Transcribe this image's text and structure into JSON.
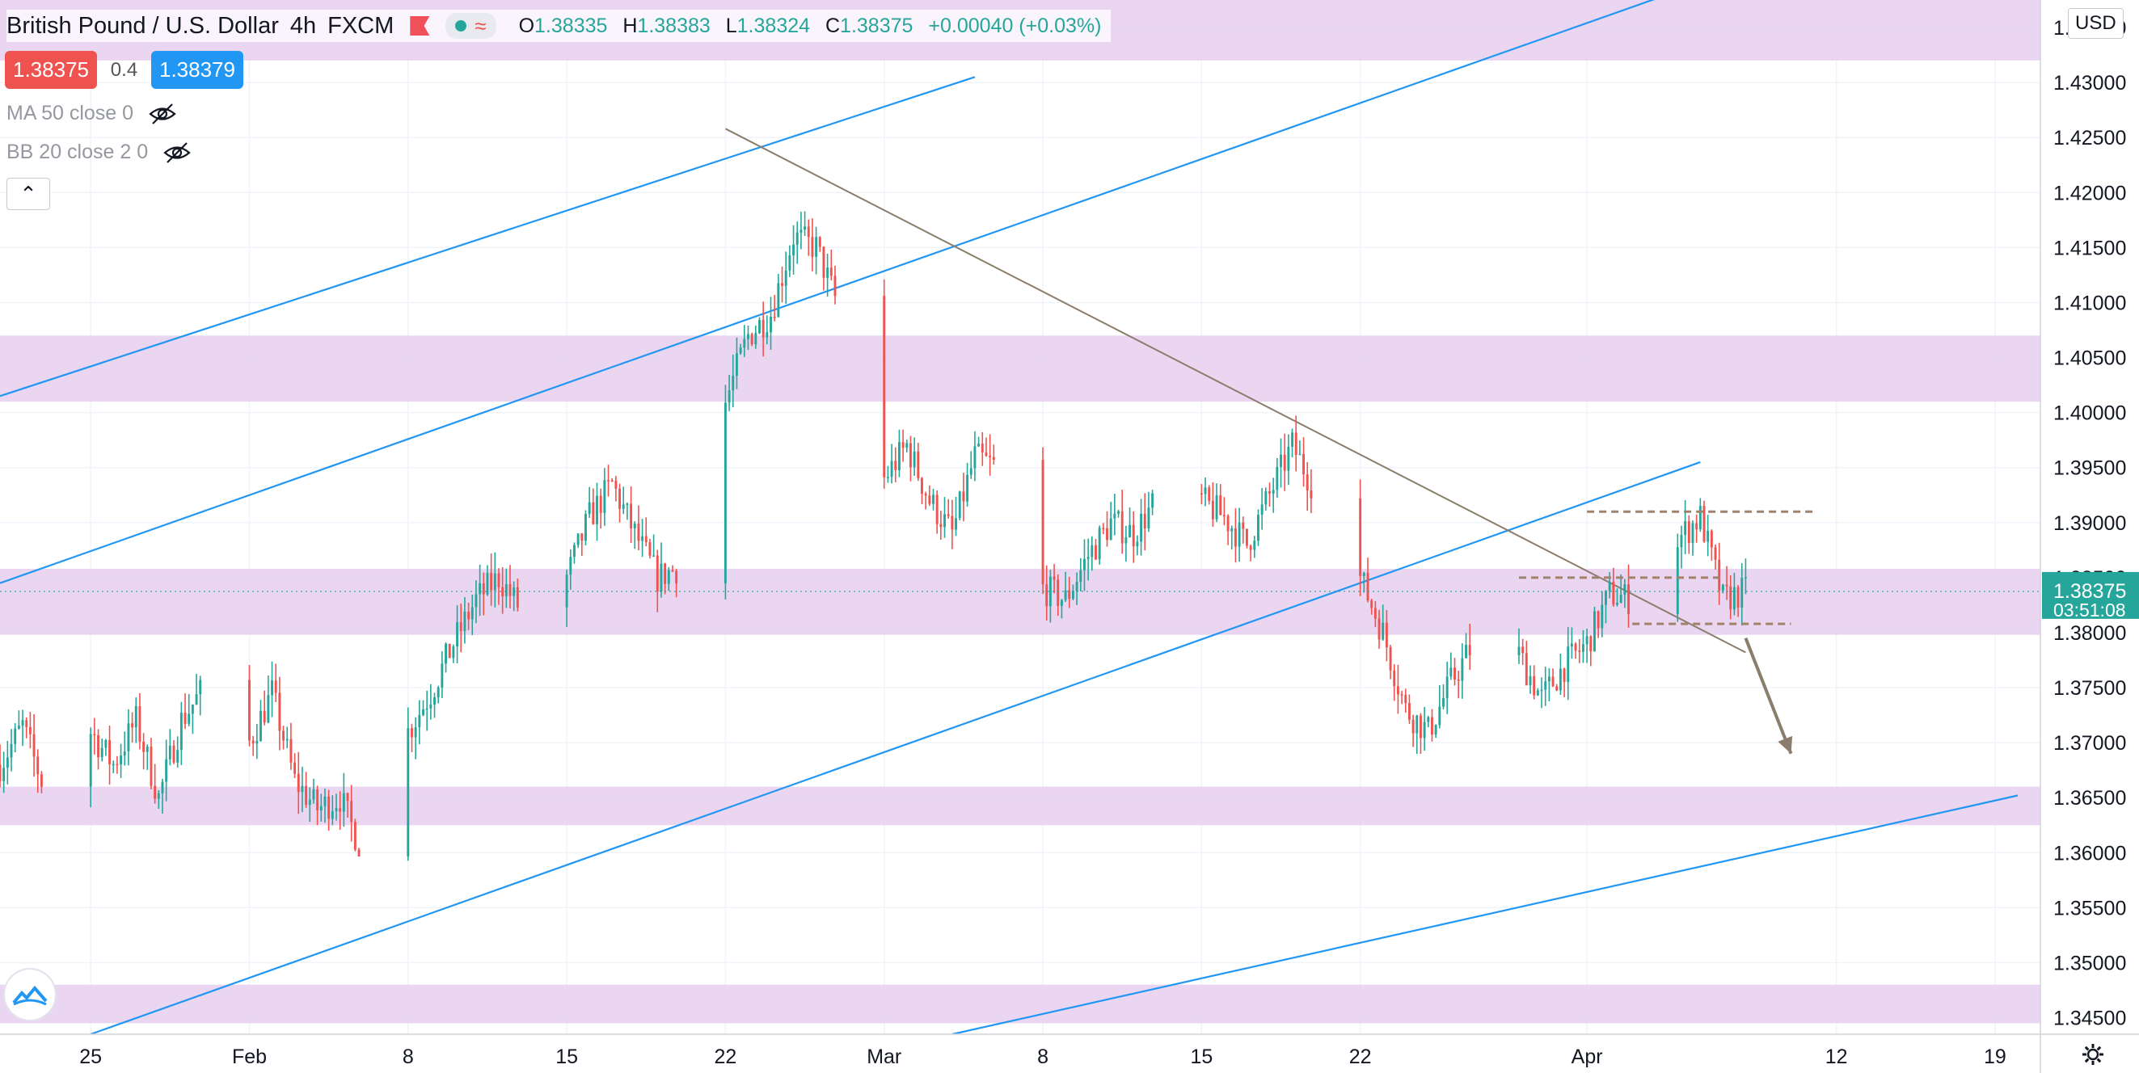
{
  "header": {
    "symbol": "British Pound / U.S. Dollar",
    "interval": "4h",
    "exchange": "FXCM",
    "ohlc": {
      "open_label": "O",
      "open": "1.38335",
      "high_label": "H",
      "high": "1.38383",
      "low_label": "L",
      "low": "1.38324",
      "close_label": "C",
      "close": "1.38375",
      "change": "+0.00040 (+0.03%)"
    }
  },
  "quotes": {
    "sell": "1.38375",
    "spread": "0.4",
    "buy": "1.38379"
  },
  "indicators": [
    {
      "label": "MA 50 close 0"
    },
    {
      "label": "BB 20 close 2 0"
    }
  ],
  "price_axis": {
    "currency": "USD"
  },
  "last_price": {
    "value": "1.38375",
    "countdown": "03:51:08"
  },
  "colors": {
    "up": "#26a69a",
    "down": "#ef5350",
    "zone": "#e6cfee",
    "channel": "#2196f3",
    "trendline": "#8b7d6b",
    "level": "#a0826d",
    "arrow": "#8b7d6b"
  },
  "chart_data": {
    "type": "candlestick",
    "title": "British Pound / U.S. Dollar",
    "interval": "4h",
    "y_unit": "USD",
    "y_range": [
      1.3435,
      1.4375
    ],
    "y_ticks": [
      "1.43500",
      "1.43000",
      "1.42500",
      "1.42000",
      "1.41500",
      "1.41000",
      "1.40500",
      "1.40000",
      "1.39500",
      "1.39000",
      "1.38500",
      "1.38000",
      "1.37500",
      "1.37000",
      "1.36500",
      "1.36000",
      "1.35500",
      "1.35000",
      "1.34500"
    ],
    "x_range": [
      "2021-01-21",
      "2021-04-21"
    ],
    "x_ticks": [
      {
        "label": "25",
        "date": "2021-01-25"
      },
      {
        "label": "Feb",
        "date": "2021-02-01"
      },
      {
        "label": "8",
        "date": "2021-02-08"
      },
      {
        "label": "15",
        "date": "2021-02-15"
      },
      {
        "label": "22",
        "date": "2021-02-22"
      },
      {
        "label": "Mar",
        "date": "2021-03-01"
      },
      {
        "label": "8",
        "date": "2021-03-08"
      },
      {
        "label": "15",
        "date": "2021-03-15"
      },
      {
        "label": "22",
        "date": "2021-03-22"
      },
      {
        "label": "Apr",
        "date": "2021-04-01"
      },
      {
        "label": "12",
        "date": "2021-04-12"
      },
      {
        "label": "19",
        "date": "2021-04-19"
      }
    ],
    "grid": true,
    "price_path": [
      [
        "2021-01-21",
        1.368
      ],
      [
        "2021-01-22",
        1.3715
      ],
      [
        "2021-01-23",
        1.3655
      ],
      [
        "2021-01-25",
        1.371
      ],
      [
        "2021-01-26",
        1.368
      ],
      [
        "2021-01-27",
        1.372
      ],
      [
        "2021-01-28",
        1.365
      ],
      [
        "2021-01-29",
        1.372
      ],
      [
        "2021-01-30",
        1.375
      ],
      [
        "2021-01-31",
        1.369
      ],
      [
        "2021-02-01",
        1.37
      ],
      [
        "2021-02-02",
        1.3745
      ],
      [
        "2021-02-03",
        1.3665
      ],
      [
        "2021-02-04",
        1.364
      ],
      [
        "2021-02-05",
        1.365
      ],
      [
        "2021-02-06",
        1.36
      ],
      [
        "2021-02-07",
        1.366
      ],
      [
        "2021-02-08",
        1.371
      ],
      [
        "2021-02-09",
        1.3745
      ],
      [
        "2021-02-10",
        1.379
      ],
      [
        "2021-02-11",
        1.383
      ],
      [
        "2021-02-12",
        1.385
      ],
      [
        "2021-02-13",
        1.382
      ],
      [
        "2021-02-14",
        1.381
      ],
      [
        "2021-02-15",
        1.385
      ],
      [
        "2021-02-16",
        1.3905
      ],
      [
        "2021-02-17",
        1.3935
      ],
      [
        "2021-02-18",
        1.389
      ],
      [
        "2021-02-19",
        1.385
      ],
      [
        "2021-02-20",
        1.386
      ],
      [
        "2021-02-21",
        1.397
      ],
      [
        "2021-02-22",
        1.401
      ],
      [
        "2021-02-23",
        1.407
      ],
      [
        "2021-02-24",
        1.409
      ],
      [
        "2021-02-25",
        1.416
      ],
      [
        "2021-02-26",
        1.415
      ],
      [
        "2021-02-27",
        1.4095
      ],
      [
        "2021-02-28",
        1.398
      ],
      [
        "2021-03-01",
        1.394
      ],
      [
        "2021-03-02",
        1.397
      ],
      [
        "2021-03-03",
        1.392
      ],
      [
        "2021-03-04",
        1.389
      ],
      [
        "2021-03-05",
        1.396
      ],
      [
        "2021-03-06",
        1.395
      ],
      [
        "2021-03-07",
        1.3885
      ],
      [
        "2021-03-08",
        1.384
      ],
      [
        "2021-03-09",
        1.383
      ],
      [
        "2021-03-10",
        1.387
      ],
      [
        "2021-03-11",
        1.39
      ],
      [
        "2021-03-12",
        1.389
      ],
      [
        "2021-03-13",
        1.392
      ],
      [
        "2021-03-14",
        1.399
      ],
      [
        "2021-03-15",
        1.392
      ],
      [
        "2021-03-16",
        1.3905
      ],
      [
        "2021-03-17",
        1.388
      ],
      [
        "2021-03-18",
        1.3925
      ],
      [
        "2021-03-19",
        1.397
      ],
      [
        "2021-03-20",
        1.393
      ],
      [
        "2021-03-21",
        1.387
      ],
      [
        "2021-03-22",
        1.385
      ],
      [
        "2021-03-23",
        1.38
      ],
      [
        "2021-03-24",
        1.373
      ],
      [
        "2021-03-25",
        1.371
      ],
      [
        "2021-03-26",
        1.3755
      ],
      [
        "2021-03-27",
        1.379
      ],
      [
        "2021-03-28",
        1.38
      ],
      [
        "2021-03-29",
        1.378
      ],
      [
        "2021-03-30",
        1.374
      ],
      [
        "2021-03-31",
        1.377
      ],
      [
        "2021-04-01",
        1.379
      ],
      [
        "2021-04-02",
        1.3835
      ],
      [
        "2021-04-03",
        1.383
      ],
      [
        "2021-04-04",
        1.384
      ],
      [
        "2021-04-05",
        1.3885
      ],
      [
        "2021-04-06",
        1.3905
      ],
      [
        "2021-04-07",
        1.383
      ],
      [
        "2021-04-08",
        1.3838
      ]
    ],
    "annotations": {
      "zones": [
        [
          1.432,
          1.438
        ],
        [
          1.401,
          1.407
        ],
        [
          1.3798,
          1.3858
        ],
        [
          1.3625,
          1.366
        ],
        [
          1.3445,
          1.348
        ]
      ],
      "channel_lines": [
        {
          "from": [
            "2021-01-21",
            1.4015
          ],
          "to": [
            "2021-03-05",
            1.4305
          ]
        },
        {
          "from": [
            "2021-01-21",
            1.3845
          ],
          "to": [
            "2021-04-08",
            1.4405
          ]
        },
        {
          "from": [
            "2021-01-25",
            1.3435
          ],
          "to": [
            "2021-04-06",
            1.3955
          ]
        },
        {
          "from": [
            "2021-03-04",
            1.3435
          ],
          "to": [
            "2021-04-20",
            1.3652
          ]
        }
      ],
      "trendline": {
        "from": [
          "2021-02-22",
          1.4258
        ],
        "to": [
          "2021-04-08",
          1.3782
        ]
      },
      "dashed_levels": [
        {
          "from": "2021-04-01",
          "to": "2021-04-11",
          "price": 1.391
        },
        {
          "from": "2021-03-29",
          "to": "2021-04-07",
          "price": 1.385
        },
        {
          "from": "2021-04-03",
          "to": "2021-04-10",
          "price": 1.3808
        }
      ],
      "arrow": {
        "from": [
          "2021-04-08",
          1.3795
        ],
        "to": [
          "2021-04-10",
          1.369
        ]
      }
    }
  }
}
